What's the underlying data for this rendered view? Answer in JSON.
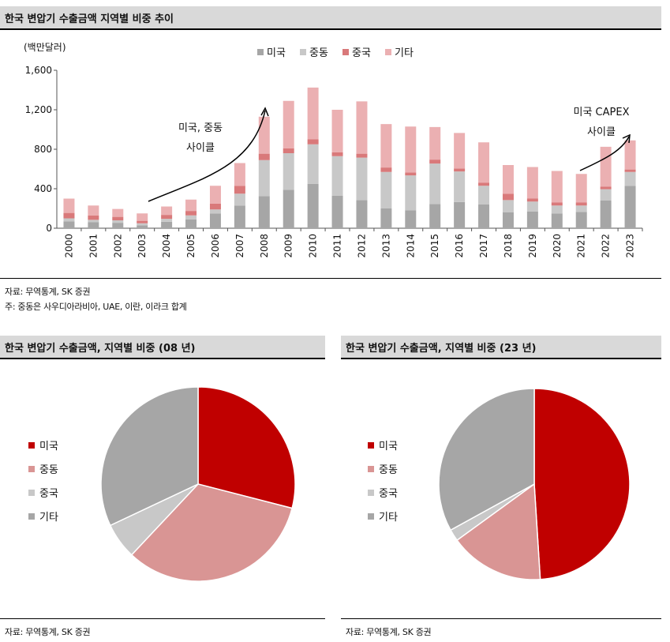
{
  "top": {
    "title": "한국 변압기 수출금액 지역별 비중 추이",
    "source": "자료: 무역통계, SK 증권",
    "note": "주: 중동은 사우디아라비아, UAE, 이란, 이라크 합계"
  },
  "left": {
    "title": "한국 변압기 수출금액, 지역별 비중 (08 년)",
    "source": "자료: 무역통계, SK 증권"
  },
  "right": {
    "title": "한국 변압기 수출금액, 지역별 비중 (23 년)",
    "source": "자료: 무역통계, SK 증권"
  },
  "colors": {
    "us": "#c00000",
    "me": "#d99594",
    "cn": "#c8c8c8",
    "other": "#a6a6a6",
    "bar_us": "#a6a6a6",
    "bar_me": "#c8c8c8",
    "bar_cn": "#d9797a",
    "bar_other": "#ebb0b2"
  },
  "chart_data": [
    {
      "type": "bar",
      "stacked": true,
      "unit_label": "(백만달러)",
      "categories": [
        "2000",
        "2001",
        "2002",
        "2003",
        "2004",
        "2005",
        "2006",
        "2007",
        "2008",
        "2009",
        "2010",
        "2011",
        "2012",
        "2013",
        "2014",
        "2015",
        "2016",
        "2017",
        "2018",
        "2019",
        "2020",
        "2021",
        "2022",
        "2023"
      ],
      "series": [
        {
          "name": "미국",
          "values": [
            70,
            60,
            55,
            30,
            65,
            90,
            150,
            230,
            325,
            390,
            450,
            330,
            285,
            200,
            180,
            245,
            265,
            240,
            160,
            170,
            150,
            165,
            280,
            430
          ]
        },
        {
          "name": "중동",
          "values": [
            30,
            25,
            25,
            20,
            30,
            40,
            40,
            120,
            365,
            370,
            400,
            400,
            430,
            370,
            355,
            410,
            310,
            190,
            125,
            100,
            80,
            65,
            115,
            140
          ]
        },
        {
          "name": "중국",
          "values": [
            55,
            45,
            35,
            25,
            40,
            45,
            60,
            80,
            65,
            50,
            50,
            40,
            40,
            45,
            30,
            40,
            30,
            30,
            65,
            30,
            30,
            30,
            25,
            25
          ]
        },
        {
          "name": "기타",
          "values": [
            145,
            100,
            80,
            75,
            85,
            115,
            180,
            230,
            375,
            480,
            525,
            430,
            530,
            440,
            465,
            330,
            360,
            410,
            290,
            320,
            320,
            290,
            405,
            295
          ]
        }
      ],
      "ylim": [
        0,
        1600
      ],
      "yticks": [
        "0",
        "400",
        "800",
        "1,200",
        "1,600"
      ],
      "legend_position": "top",
      "annotations": [
        {
          "text_lines": [
            "미국, 중동",
            "사이클"
          ]
        },
        {
          "text_lines": [
            "미국 CAPEX",
            "사이클"
          ]
        }
      ]
    },
    {
      "type": "pie",
      "labels": [
        "미국",
        "중동",
        "중국",
        "기타"
      ],
      "values": [
        29,
        33,
        6,
        32
      ],
      "legend_position": "left"
    },
    {
      "type": "pie",
      "labels": [
        "미국",
        "중동",
        "중국",
        "기타"
      ],
      "values": [
        49,
        16,
        2,
        33
      ],
      "legend_position": "left"
    }
  ]
}
